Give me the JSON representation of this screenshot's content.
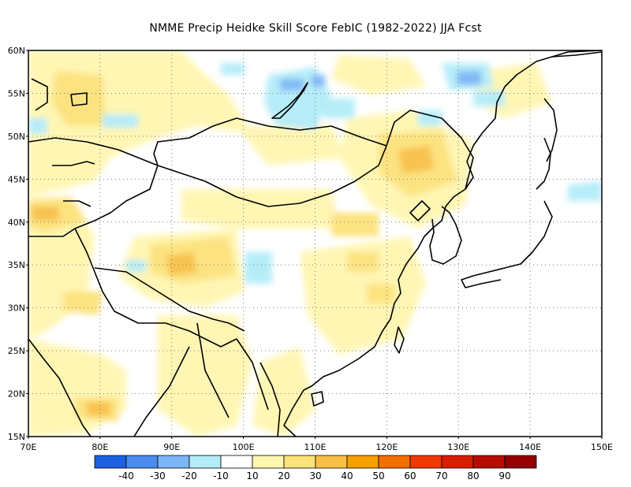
{
  "title": "NMME Precip Heidke Skill Score FebIC (1982-2022) JJA Fcst",
  "map": {
    "lon_range": [
      70,
      150
    ],
    "lat_range": [
      15,
      60
    ],
    "lat_labels": [
      "60N",
      "55N",
      "50N",
      "45N",
      "40N",
      "35N",
      "30N",
      "25N",
      "20N",
      "15N"
    ],
    "lon_labels": [
      "70E",
      "80E",
      "90E",
      "100E",
      "110E",
      "120E",
      "130E",
      "140E",
      "150E"
    ],
    "grid": "dotted"
  },
  "colorbar": {
    "colors": [
      "#1c5fe0",
      "#4a8cf0",
      "#7ab5f5",
      "#b2ecf8",
      "#ffffff",
      "#fff6b0",
      "#fce27a",
      "#f8c044",
      "#f5a000",
      "#f37000",
      "#ee3a00",
      "#d81e00",
      "#b60c00",
      "#940000"
    ],
    "labels": [
      "-40",
      "-30",
      "-20",
      "-10",
      "10",
      "20",
      "30",
      "40",
      "50",
      "60",
      "70",
      "80",
      "90"
    ]
  }
}
